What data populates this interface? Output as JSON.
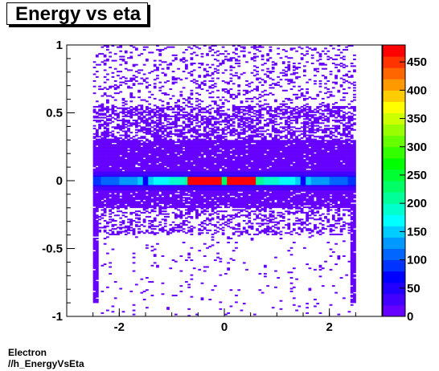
{
  "chart_data": {
    "type": "heatmap",
    "title": "Energy vs eta",
    "xlabel": "",
    "ylabel": "",
    "xlim": [
      -3,
      3
    ],
    "ylim": [
      -1,
      1
    ],
    "x_ticks": [
      -2,
      0,
      2
    ],
    "x_tick_labels": [
      "-2",
      "0",
      "2"
    ],
    "y_ticks": [
      -1,
      -0.5,
      0,
      0.5,
      1
    ],
    "y_tick_labels": [
      "-1",
      "-0.5",
      "0",
      "0.5",
      "1"
    ],
    "z_range": [
      0,
      480
    ],
    "z_ticks": [
      0,
      50,
      100,
      150,
      200,
      250,
      300,
      350,
      400,
      450
    ],
    "z_tick_labels": [
      "0",
      "50",
      "100",
      "150",
      "200",
      "250",
      "300",
      "350",
      "400",
      "450"
    ],
    "palette": [
      "#6600ff",
      "#4400ff",
      "#2200ff",
      "#0000ff",
      "#0033ff",
      "#0066ff",
      "#0099ff",
      "#00ccff",
      "#00ffff",
      "#00ffcc",
      "#00ff99",
      "#00ff66",
      "#00ff33",
      "#00ff00",
      "#33ff00",
      "#66ff00",
      "#99ff00",
      "#ccff00",
      "#ffff00",
      "#ffcc00",
      "#ff9900",
      "#ff6600",
      "#ff3300",
      "#ff0000"
    ],
    "eta_range": [
      -2.5,
      2.5
    ],
    "core_band": {
      "y_center": 0.0,
      "half_width": 0.03,
      "peak_value": 475,
      "peak_x": [
        -0.3,
        0.2
      ]
    },
    "grid": false,
    "legend": "right"
  },
  "footer": {
    "line1": "Electron",
    "line2": "//h_EnergyVsEta"
  }
}
